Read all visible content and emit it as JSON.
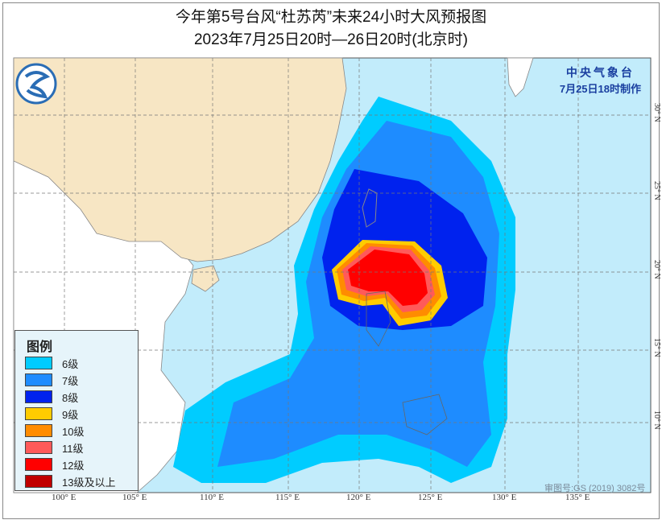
{
  "title": {
    "line1": "今年第5号台风“杜苏芮”未来24小时大风预报图",
    "line2": "2023年7月25日20时—26日20时(北京时)"
  },
  "agency": {
    "name": "中央气象台",
    "made": "7月25日18时制作"
  },
  "legend": {
    "title": "图例",
    "items": [
      {
        "label": "6级",
        "color": "#00ccff"
      },
      {
        "label": "7级",
        "color": "#1e8cff"
      },
      {
        "label": "8级",
        "color": "#0022ee"
      },
      {
        "label": "9级",
        "color": "#ffcc00"
      },
      {
        "label": "10级",
        "color": "#ff8c00"
      },
      {
        "label": "11级",
        "color": "#ff5a5a"
      },
      {
        "label": "12级",
        "color": "#ff0000"
      },
      {
        "label": "13级及以上",
        "color": "#c00000"
      }
    ]
  },
  "longitudes": [
    "100° E",
    "105° E",
    "110° E",
    "115° E",
    "120° E",
    "125° E",
    "130° E",
    "135° E"
  ],
  "latitudes": [
    "30° N",
    "25° N",
    "20° N",
    "15° N",
    "10° N"
  ],
  "approval": "审图号:GS (2019) 3082号",
  "colors": {
    "sea": "#c2ecfb",
    "china_land": "#f7e6c4",
    "other_land": "#ffffff"
  }
}
